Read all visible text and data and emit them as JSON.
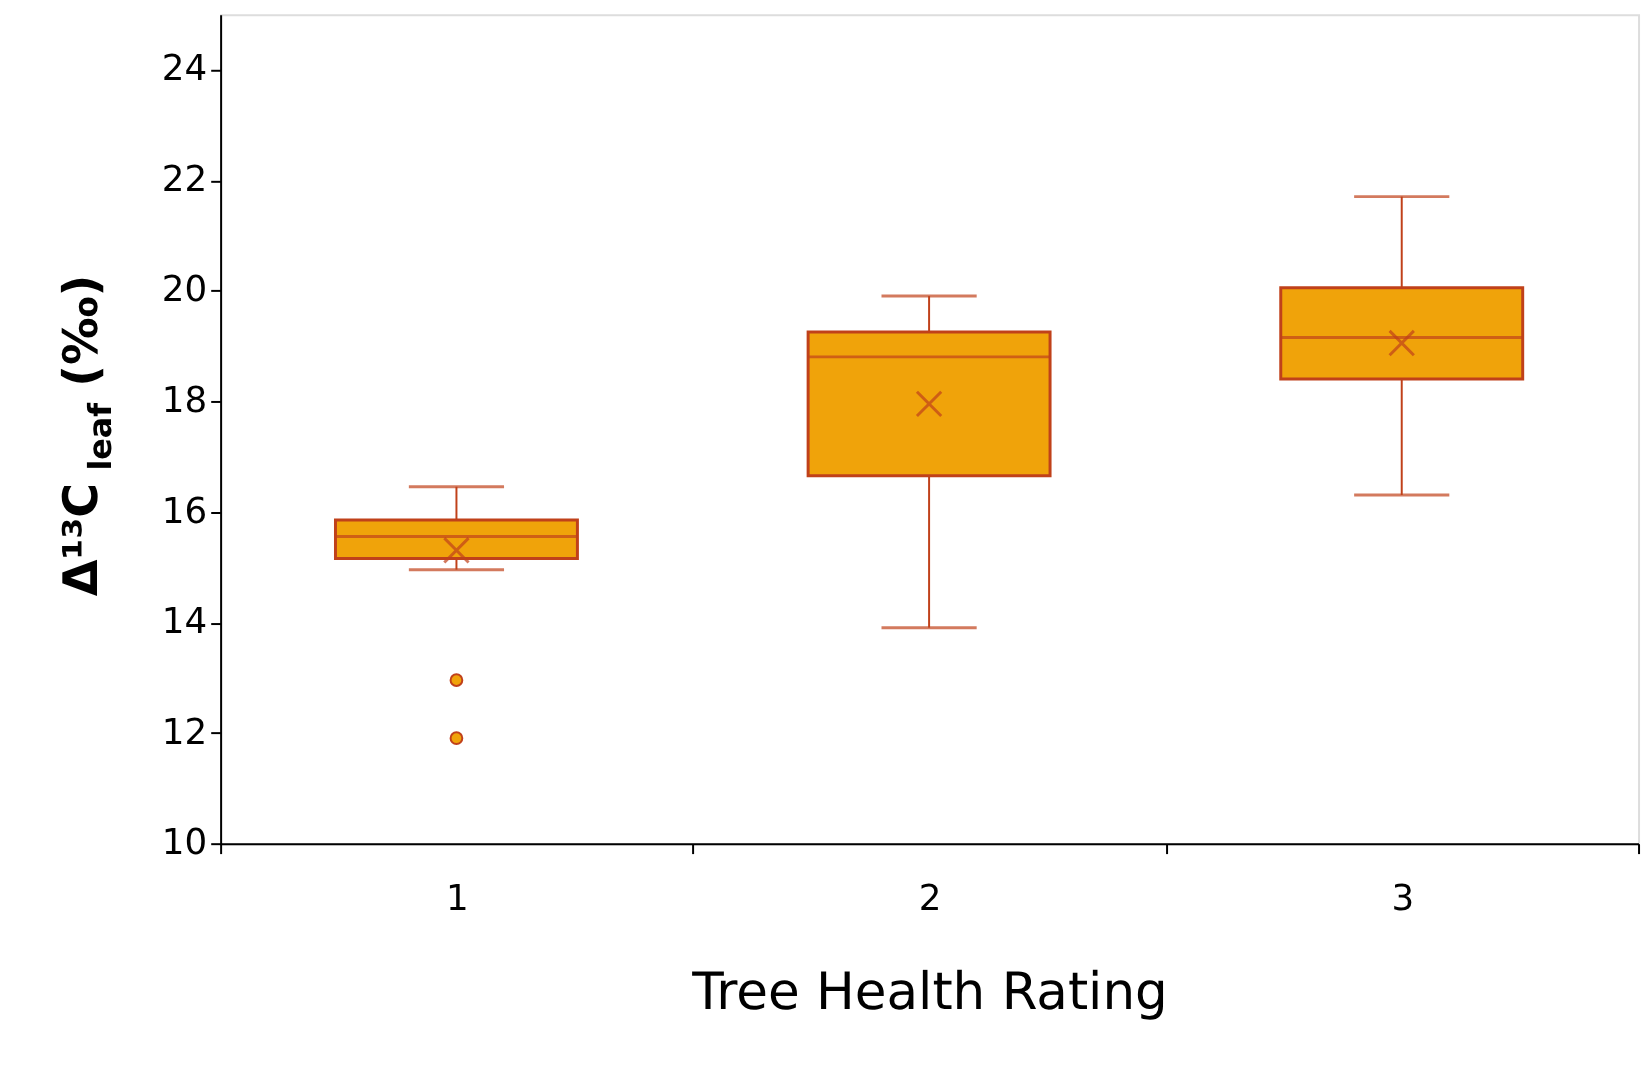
{
  "chart_data": {
    "type": "box",
    "xlabel": "Tree Health Rating",
    "ylabel": "Δ¹³C$_{leaf}$ (‰)",
    "categories": [
      "1",
      "2",
      "3"
    ],
    "boxes": [
      {
        "low": 14.95,
        "q1": 15.15,
        "median": 15.55,
        "q3": 15.85,
        "high": 16.45,
        "mean": 15.3,
        "outliers": [
          12.95,
          11.9
        ]
      },
      {
        "low": 13.9,
        "q1": 16.65,
        "median": 18.8,
        "q3": 19.25,
        "high": 19.9,
        "mean": 17.95
      },
      {
        "low": 16.3,
        "q1": 18.4,
        "median": 19.15,
        "q3": 20.05,
        "high": 21.7,
        "mean": 19.05
      }
    ],
    "color": "#f0a30a",
    "ylim": [
      10,
      25
    ],
    "yticks": [
      10,
      12,
      14,
      16,
      18,
      20,
      22,
      24
    ],
    "grid": false
  }
}
